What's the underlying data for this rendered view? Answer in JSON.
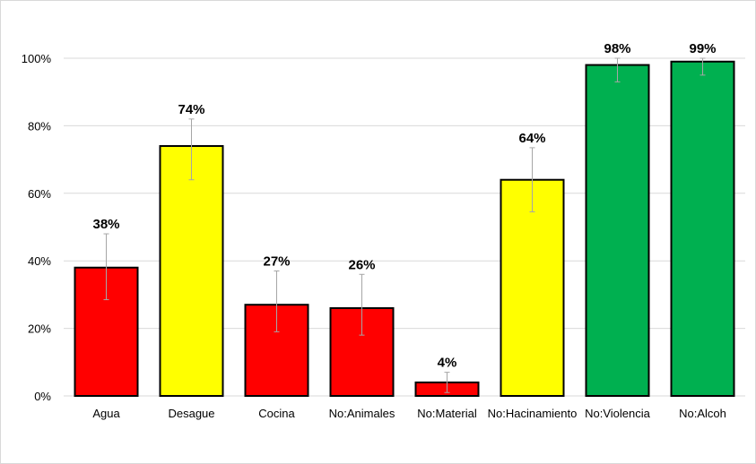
{
  "chart_data": {
    "type": "bar",
    "categories": [
      "Agua",
      "Desague",
      "Cocina",
      "No:Animales",
      "No:Material",
      "No:Hacinamiento",
      "No:Violencia",
      "No:Alcoh"
    ],
    "values": [
      38,
      74,
      27,
      26,
      4,
      64,
      98,
      99
    ],
    "value_labels": [
      "38%",
      "74%",
      "27%",
      "26%",
      "4%",
      "64%",
      "98%",
      "99%"
    ],
    "error_low": [
      28.5,
      64,
      19,
      18,
      1,
      54.5,
      93,
      95
    ],
    "error_high": [
      48,
      82,
      37,
      36,
      7,
      73.5,
      100,
      100
    ],
    "colors": [
      "#ff0000",
      "#ffff00",
      "#ff0000",
      "#ff0000",
      "#ff0000",
      "#ffff00",
      "#00b050",
      "#00b050"
    ],
    "ylim": [
      0,
      100
    ],
    "yticks": [
      0,
      20,
      40,
      60,
      80,
      100
    ],
    "ytick_labels": [
      "0%",
      "20%",
      "40%",
      "60%",
      "80%",
      "100%"
    ],
    "grid": true,
    "title": "",
    "xlabel": "",
    "ylabel": ""
  }
}
